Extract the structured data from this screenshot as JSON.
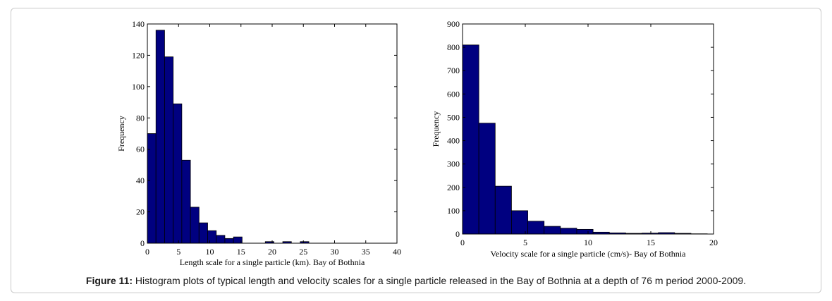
{
  "caption": {
    "label": "Figure 11:",
    "text": "Histogram plots of typical length and velocity scales for a single particle released in the Bay of Bothnia at a depth of 76 m period 2000-2009."
  },
  "chart_data": [
    {
      "type": "bar",
      "xlabel": "Length scale for a single particle (km). Bay of Bothnia",
      "ylabel": "Frequency",
      "xlim": [
        0,
        40
      ],
      "ylim": [
        0,
        140
      ],
      "xticks": [
        0,
        5,
        10,
        15,
        20,
        25,
        30,
        35,
        40
      ],
      "yticks": [
        0,
        20,
        40,
        60,
        80,
        100,
        120,
        140
      ],
      "bin_width": 1.38,
      "bin_starts": [
        0,
        1.38,
        2.76,
        4.14,
        5.52,
        6.9,
        8.28,
        9.66,
        11.04,
        12.42,
        13.8,
        18.9,
        21.7,
        24.5
      ],
      "values": [
        70,
        136,
        119,
        89,
        53,
        23,
        13,
        8,
        5,
        3,
        4,
        1,
        1,
        1
      ],
      "bar_color": "#000080",
      "grid": false
    },
    {
      "type": "bar",
      "xlabel": "Velocity scale for a single particle (cm/s)- Bay of Bothnia",
      "ylabel": "Frequency",
      "xlim": [
        0,
        20
      ],
      "ylim": [
        0,
        900
      ],
      "xticks": [
        0,
        5,
        10,
        15,
        20
      ],
      "yticks": [
        0,
        100,
        200,
        300,
        400,
        500,
        600,
        700,
        800,
        900
      ],
      "bin_width": 1.3,
      "bin_starts": [
        0,
        1.3,
        2.6,
        3.9,
        5.2,
        6.5,
        7.8,
        9.1,
        10.4,
        11.7,
        13.0,
        14.3,
        15.6,
        16.9,
        18.2
      ],
      "values": [
        810,
        475,
        205,
        100,
        55,
        33,
        25,
        20,
        8,
        5,
        3,
        4,
        6,
        3,
        1
      ],
      "bar_color": "#000080",
      "grid": false
    }
  ]
}
